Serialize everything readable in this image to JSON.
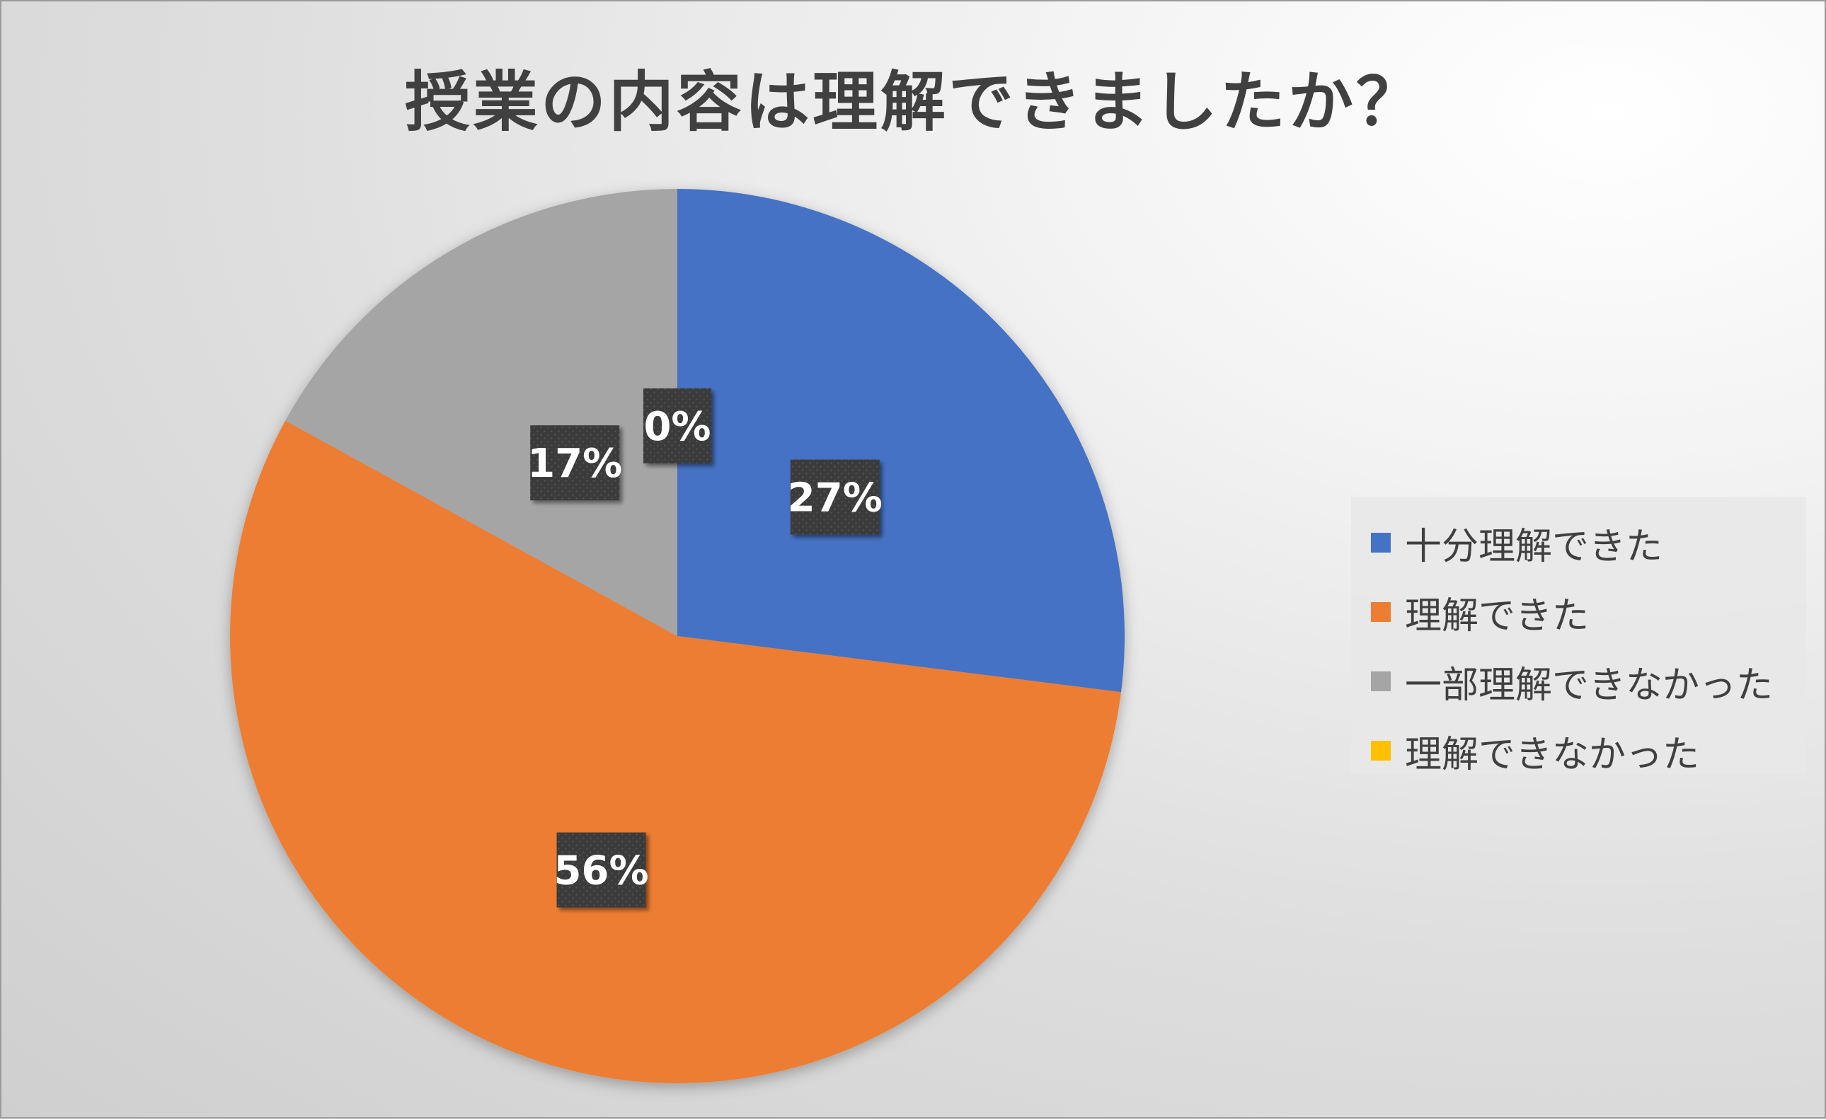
{
  "chart_data": {
    "type": "pie",
    "title": "授業の内容は理解できましたか？",
    "categories": [
      "十分理解できた",
      "理解できた",
      "一部理解できなかった",
      "理解できなかった"
    ],
    "values": [
      27,
      56,
      17,
      0
    ],
    "labels": [
      "27%",
      "56%",
      "17%",
      "0%"
    ],
    "colors": [
      "#4472C4",
      "#ED7D31",
      "#A5A5A5",
      "#FFC000"
    ],
    "legend_position": "right"
  }
}
